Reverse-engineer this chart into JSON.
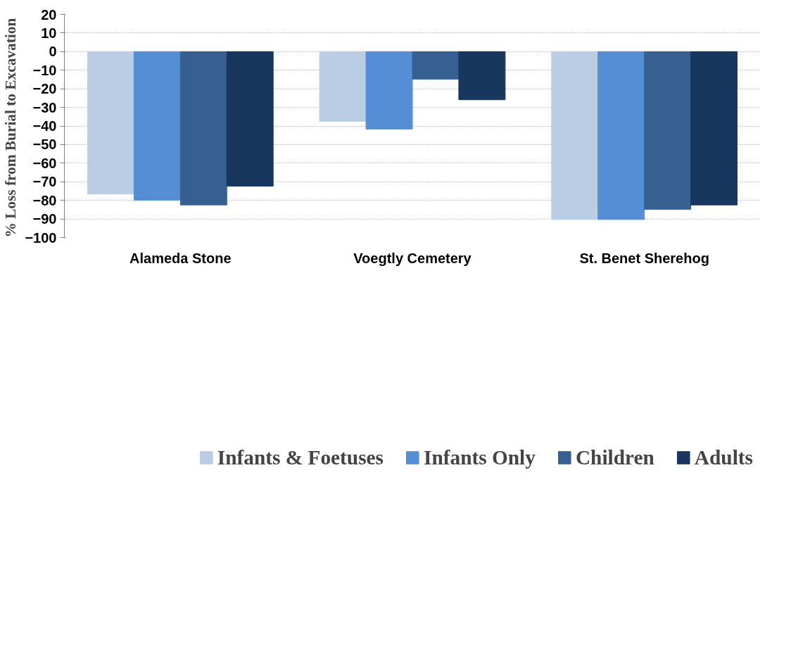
{
  "chart_data": {
    "type": "bar",
    "ylabel": "% Loss  from Burial to Excavation",
    "categories": [
      "Alameda Stone",
      "Voegtly Cemetery",
      "St. Benet Sherehog"
    ],
    "series": [
      {
        "name": "Infants & Foetuses",
        "color": "#b9cde5",
        "values": [
          -76.6,
          -37.5,
          -90.3
        ]
      },
      {
        "name": "Infants Only",
        "color": "#558ed5",
        "values": [
          -79.9,
          -41.7,
          -90.3
        ]
      },
      {
        "name": "Children",
        "color": "#376092",
        "values": [
          -82.5,
          -14.8,
          -84.9
        ]
      },
      {
        "name": "Adults",
        "color": "#17375e",
        "values": [
          -72.4,
          -25.9,
          -82.5
        ]
      }
    ],
    "ylim": [
      -100,
      20
    ],
    "yticks": [
      -100,
      -90,
      -80,
      -70,
      -60,
      -50,
      -40,
      -30,
      -20,
      -10,
      0,
      10,
      20
    ],
    "grid": "y",
    "legend": "bottom"
  }
}
